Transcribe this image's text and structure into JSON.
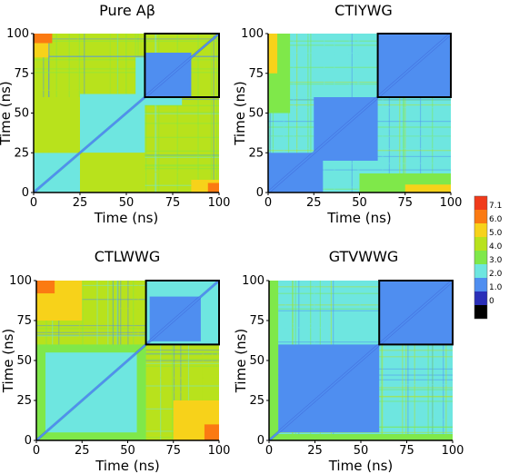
{
  "chart_data": {
    "type": "heatmap",
    "colorbar": {
      "ticks": [
        "7.1",
        "6.0",
        "5.0",
        "4.0",
        "3.0",
        "2.0",
        "1.0",
        "0"
      ],
      "colors": [
        "#f03a1a",
        "#fb7a12",
        "#f7d21a",
        "#b8e21c",
        "#7fe84a",
        "#6ee6e0",
        "#4f8ef0",
        "#2a2fb8",
        "#000000"
      ]
    },
    "panels": [
      {
        "title": "Pure Aβ",
        "xlabel": "Time (ns)",
        "ylabel": "Time (ns)",
        "xlim": [
          0,
          100
        ],
        "ylim": [
          0,
          100
        ],
        "xticks": [
          "0",
          "25",
          "50",
          "75",
          "100"
        ],
        "yticks": [
          "0",
          "25",
          "50",
          "75",
          "100"
        ],
        "highlight": {
          "x": [
            60,
            100
          ],
          "y": [
            60,
            100
          ]
        },
        "background": "#b8e21c",
        "regions": [
          {
            "x0": 0,
            "x1": 25,
            "y0": 0,
            "y1": 25,
            "level": "2.0"
          },
          {
            "x0": 25,
            "x1": 60,
            "y0": 25,
            "y1": 62,
            "level": "2.0"
          },
          {
            "x0": 55,
            "x1": 80,
            "y0": 55,
            "y1": 85,
            "level": "2.0"
          },
          {
            "x0": 60,
            "x1": 85,
            "y0": 60,
            "y1": 88,
            "level": "1.0"
          },
          {
            "x0": 0,
            "x1": 8,
            "y0": 85,
            "y1": 100,
            "level": "5.0"
          },
          {
            "x0": 85,
            "x1": 100,
            "y0": 0,
            "y1": 8,
            "level": "5.0"
          },
          {
            "x0": 0,
            "x1": 10,
            "y0": 94,
            "y1": 100,
            "level": "6.0"
          },
          {
            "x0": 94,
            "x1": 100,
            "y0": 0,
            "y1": 6,
            "level": "6.0"
          },
          {
            "x0": 25,
            "x1": 60,
            "y0": 0,
            "y1": 25,
            "level": "4.0"
          },
          {
            "x0": 0,
            "x1": 25,
            "y0": 25,
            "y1": 60,
            "level": "4.0"
          }
        ]
      },
      {
        "title": "CTIYWG",
        "xlabel": "Time (ns)",
        "ylabel": "Time (ns)",
        "xlim": [
          0,
          100
        ],
        "ylim": [
          0,
          100
        ],
        "xticks": [
          "0",
          "25",
          "50",
          "75",
          "100"
        ],
        "yticks": [
          "0",
          "25",
          "50",
          "75",
          "100"
        ],
        "highlight": {
          "x": [
            60,
            100
          ],
          "y": [
            60,
            100
          ]
        },
        "background": "#6ee6e0",
        "regions": [
          {
            "x0": 0,
            "x1": 30,
            "y0": 0,
            "y1": 25,
            "level": "1.0"
          },
          {
            "x0": 25,
            "x1": 60,
            "y0": 20,
            "y1": 60,
            "level": "1.0"
          },
          {
            "x0": 60,
            "x1": 100,
            "y0": 60,
            "y1": 100,
            "level": "1.0"
          },
          {
            "x0": 0,
            "x1": 12,
            "y0": 50,
            "y1": 100,
            "level": "3.0"
          },
          {
            "x0": 50,
            "x1": 100,
            "y0": 0,
            "y1": 12,
            "level": "3.0"
          },
          {
            "x0": 0,
            "x1": 5,
            "y0": 75,
            "y1": 100,
            "level": "5.0"
          },
          {
            "x0": 75,
            "x1": 100,
            "y0": 0,
            "y1": 5,
            "level": "5.0"
          }
        ]
      },
      {
        "title": "CTLWWG",
        "xlabel": "Time (ns)",
        "ylabel": "Time (ns)",
        "xlim": [
          0,
          100
        ],
        "ylim": [
          0,
          100
        ],
        "xticks": [
          "0",
          "25",
          "50",
          "75",
          "100"
        ],
        "yticks": [
          "0",
          "25",
          "50",
          "75",
          "100"
        ],
        "highlight": {
          "x": [
            60,
            100
          ],
          "y": [
            60,
            100
          ]
        },
        "background": "#b8e21c",
        "regions": [
          {
            "x0": 0,
            "x1": 60,
            "y0": 0,
            "y1": 60,
            "level": "3.0"
          },
          {
            "x0": 5,
            "x1": 55,
            "y0": 5,
            "y1": 55,
            "level": "2.0"
          },
          {
            "x0": 60,
            "x1": 100,
            "y0": 60,
            "y1": 100,
            "level": "2.0"
          },
          {
            "x0": 62,
            "x1": 90,
            "y0": 62,
            "y1": 90,
            "level": "1.0"
          },
          {
            "x0": 0,
            "x1": 25,
            "y0": 75,
            "y1": 100,
            "level": "5.0"
          },
          {
            "x0": 75,
            "x1": 100,
            "y0": 0,
            "y1": 25,
            "level": "5.0"
          },
          {
            "x0": 0,
            "x1": 10,
            "y0": 92,
            "y1": 100,
            "level": "6.0"
          },
          {
            "x0": 92,
            "x1": 100,
            "y0": 0,
            "y1": 10,
            "level": "6.0"
          }
        ]
      },
      {
        "title": "GTVWWG",
        "xlabel": "Time (ns)",
        "ylabel": "Time (ns)",
        "xlim": [
          0,
          100
        ],
        "ylim": [
          0,
          100
        ],
        "xticks": [
          "0",
          "25",
          "50",
          "75",
          "100"
        ],
        "yticks": [
          "0",
          "25",
          "50",
          "75",
          "100"
        ],
        "highlight": {
          "x": [
            60,
            100
          ],
          "y": [
            60,
            100
          ]
        },
        "background": "#6ee6e0",
        "regions": [
          {
            "x0": 5,
            "x1": 60,
            "y0": 5,
            "y1": 60,
            "level": "1.0"
          },
          {
            "x0": 60,
            "x1": 100,
            "y0": 60,
            "y1": 100,
            "level": "1.0"
          },
          {
            "x0": 0,
            "x1": 5,
            "y0": 0,
            "y1": 100,
            "level": "3.0"
          },
          {
            "x0": 0,
            "x1": 100,
            "y0": 0,
            "y1": 4,
            "level": "3.0"
          }
        ]
      }
    ]
  }
}
